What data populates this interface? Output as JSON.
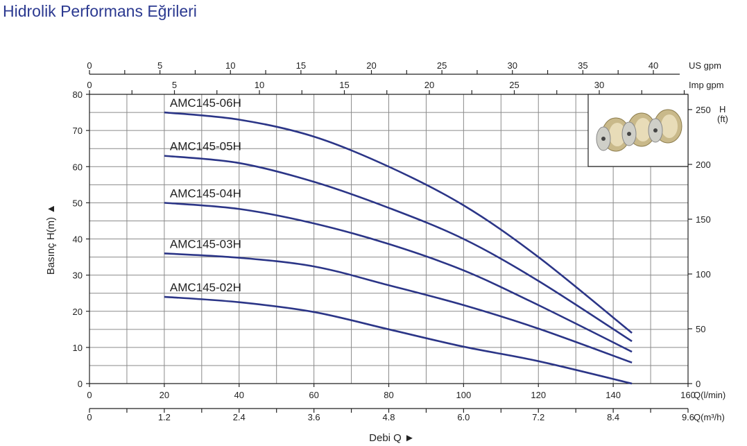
{
  "title": "Hidrolik Performans Eğrileri",
  "chart_data": {
    "type": "line",
    "title": "Hidrolik Performans Eğrileri",
    "xlabel": "Debi Q ►",
    "ylabel": "Basınç H(m) ▲",
    "xlim": [
      0,
      160
    ],
    "ylim": [
      0,
      80
    ],
    "grid": true,
    "x_ticks": [
      0,
      20,
      40,
      60,
      80,
      100,
      120,
      140,
      160
    ],
    "x_unit": "Q(l/min)",
    "y_ticks": [
      0,
      10,
      20,
      30,
      40,
      50,
      60,
      70,
      80
    ],
    "secondary_axes": {
      "m3h": {
        "unit": "Q(m³/h)",
        "ticks": [
          "0",
          "1.2",
          "2.4",
          "3.6",
          "4.8",
          "6.0",
          "7.2",
          "8.4",
          "9.6"
        ],
        "range": [
          0,
          9.6
        ]
      },
      "us_gpm": {
        "unit": "US gpm",
        "ticks": [
          0,
          5,
          10,
          15,
          20,
          25,
          30,
          35,
          40
        ]
      },
      "imp_gpm": {
        "unit": "Imp gpm",
        "ticks": [
          0,
          5,
          10,
          15,
          20,
          25,
          30
        ]
      },
      "ft": {
        "unit_h": "H",
        "unit_ft": "(ft)",
        "ticks": [
          0,
          50,
          100,
          150,
          200,
          250
        ]
      }
    },
    "series": [
      {
        "name": "AMC145-06H",
        "x": [
          20,
          40,
          60,
          80,
          100,
          120,
          145
        ],
        "y": [
          75,
          73,
          68.3,
          60,
          49.3,
          35,
          14
        ]
      },
      {
        "name": "AMC145-05H",
        "x": [
          20,
          40,
          60,
          80,
          100,
          120,
          145
        ],
        "y": [
          63,
          61,
          55.8,
          48.6,
          40,
          28.4,
          11.7
        ]
      },
      {
        "name": "AMC145-04H",
        "x": [
          20,
          40,
          60,
          80,
          100,
          120,
          145
        ],
        "y": [
          50,
          48.3,
          44.3,
          38.6,
          31.3,
          21.7,
          8.8
        ]
      },
      {
        "name": "AMC145-03H",
        "x": [
          20,
          40,
          60,
          80,
          100,
          120,
          145
        ],
        "y": [
          36,
          34.8,
          32.4,
          27.2,
          21.7,
          15.2,
          5.8
        ]
      },
      {
        "name": "AMC145-02H",
        "x": [
          20,
          40,
          60,
          80,
          100,
          120,
          145
        ],
        "y": [
          24,
          22.5,
          19.8,
          15,
          10.2,
          6.2,
          0
        ]
      }
    ],
    "line_color": "#2b3587"
  }
}
